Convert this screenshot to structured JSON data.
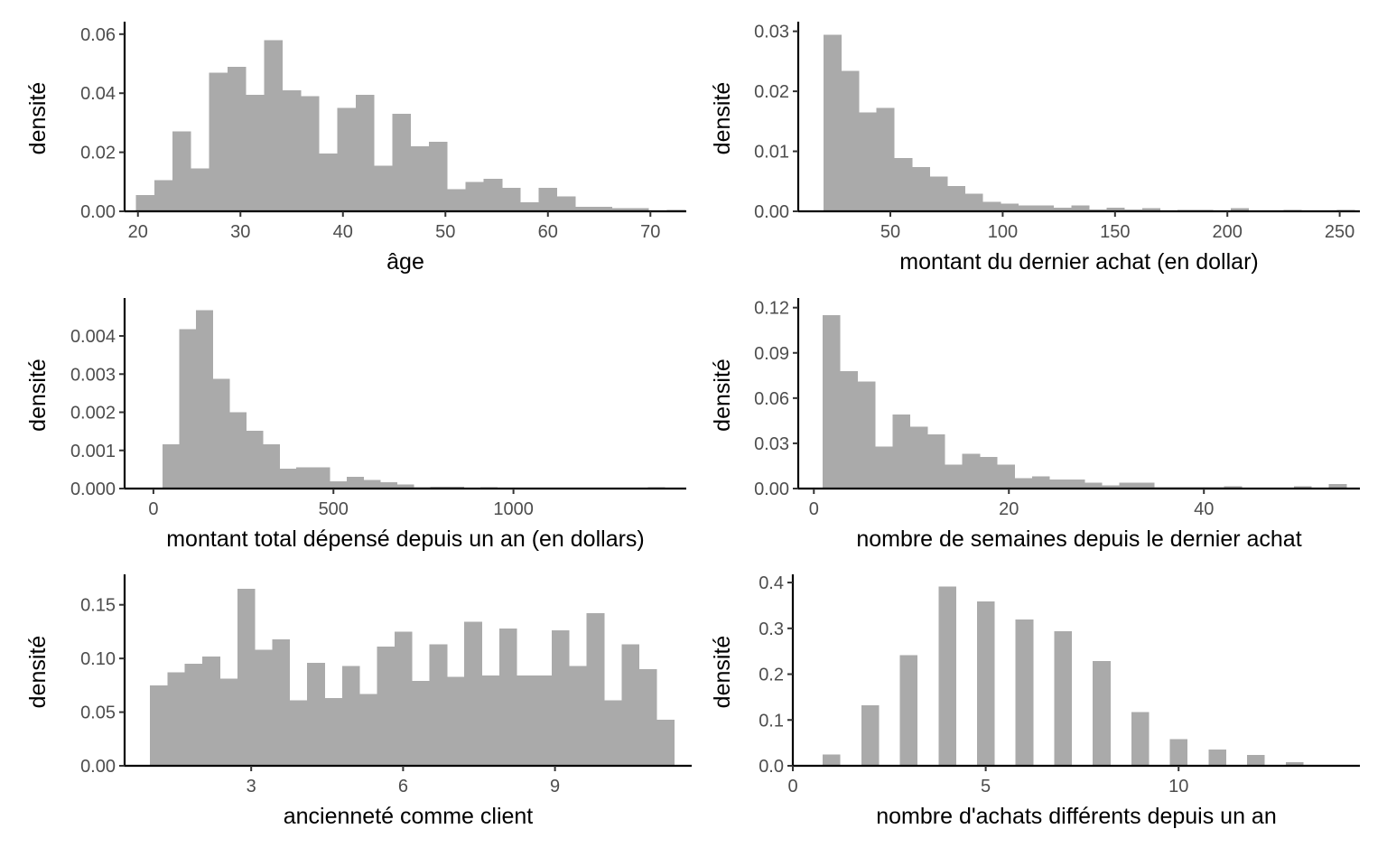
{
  "colors": {
    "bar": "#aaaaaa",
    "axis": "#000000",
    "tick_label": "#4d4d4d"
  },
  "chart_data": [
    {
      "type": "bar",
      "subtype": "histogram",
      "xlabel": "âge",
      "ylabel": "densité",
      "xlim": [
        18.7,
        73.5
      ],
      "ylim": [
        0,
        0.063
      ],
      "xticks": [
        20,
        30,
        40,
        50,
        60,
        70
      ],
      "xtick_labels": [
        "20",
        "30",
        "40",
        "50",
        "60",
        "70"
      ],
      "yticks": [
        0,
        0.02,
        0.04,
        0.06
      ],
      "ytick_labels": [
        "0.00",
        "0.02",
        "0.04",
        "0.06"
      ],
      "bin_start": 19.8,
      "bin_width": 1.786,
      "values": [
        0.0055,
        0.0105,
        0.027,
        0.0145,
        0.047,
        0.049,
        0.0395,
        0.058,
        0.041,
        0.039,
        0.0195,
        0.035,
        0.0395,
        0.0155,
        0.033,
        0.022,
        0.0235,
        0.0075,
        0.01,
        0.011,
        0.008,
        0.003,
        0.008,
        0.005,
        0.0015,
        0.0015,
        0.001,
        0.001,
        0,
        0.0005
      ]
    },
    {
      "type": "bar",
      "subtype": "histogram",
      "xlabel": "montant du dernier achat (en dollar)",
      "ylabel": "densité",
      "xlim": [
        9,
        259
      ],
      "ylim": [
        0,
        0.031
      ],
      "xticks": [
        50,
        100,
        150,
        200,
        250
      ],
      "xtick_labels": [
        "50",
        "100",
        "150",
        "200",
        "250"
      ],
      "yticks": [
        0,
        0.01,
        0.02,
        0.03
      ],
      "ytick_labels": [
        "0.00",
        "0.01",
        "0.02",
        "0.03"
      ],
      "bin_start": 20.2,
      "bin_width": 7.88,
      "values": [
        0.0294,
        0.0234,
        0.0165,
        0.0172,
        0.0089,
        0.0074,
        0.0058,
        0.0042,
        0.0029,
        0.0016,
        0.0013,
        0.001,
        0.001,
        0.0006,
        0.001,
        0.0003,
        0.0006,
        0.0003,
        0.0005,
        0.0001,
        0.0002,
        0.0002,
        0.0001,
        0.0005,
        0.0001,
        0.0001,
        0.0002,
        0.0001,
        0.0001,
        0.0002
      ]
    },
    {
      "type": "bar",
      "subtype": "histogram",
      "xlabel": "montant total dépensé depuis un an (en dollars)",
      "ylabel": "densité",
      "xlim": [
        -80,
        1480
      ],
      "ylim": [
        0,
        0.0049
      ],
      "xticks": [
        0,
        500,
        1000
      ],
      "xtick_labels": [
        "0",
        "500",
        "1000"
      ],
      "yticks": [
        0,
        0.001,
        0.002,
        0.003,
        0.004
      ],
      "ytick_labels": [
        "0.000",
        "0.001",
        "0.002",
        "0.003",
        "0.004"
      ],
      "bin_start": 25,
      "bin_width": 46.5,
      "values": [
        0.00116,
        0.00418,
        0.00467,
        0.00288,
        0.002,
        0.00152,
        0.00116,
        0.00052,
        0.00056,
        0.00056,
        0.00019,
        0.00031,
        0.00022,
        0.00017,
        0.00011,
        3e-05,
        5e-05,
        5e-05,
        2e-05,
        4e-05,
        2e-05,
        1e-05,
        1e-05,
        1e-05,
        1e-05,
        0,
        0,
        0,
        0,
        4e-05
      ]
    },
    {
      "type": "bar",
      "subtype": "histogram",
      "xlabel": "nombre de semaines depuis le dernier achat",
      "ylabel": "densité",
      "xlim": [
        -1.6,
        56
      ],
      "ylim": [
        0,
        0.124
      ],
      "xticks": [
        0,
        20,
        40
      ],
      "xtick_labels": [
        "0",
        "20",
        "40"
      ],
      "yticks": [
        0,
        0.03,
        0.06,
        0.09,
        0.12
      ],
      "ytick_labels": [
        "0.00",
        "0.03",
        "0.06",
        "0.09",
        "0.12"
      ],
      "bin_start": 0.9,
      "bin_width": 1.79,
      "values": [
        0.115,
        0.078,
        0.071,
        0.028,
        0.049,
        0.041,
        0.036,
        0.016,
        0.023,
        0.021,
        0.016,
        0.007,
        0.008,
        0.006,
        0.006,
        0.004,
        0.002,
        0.004,
        0.004,
        0.001,
        0.001,
        0.001,
        0.001,
        0.0015,
        0.0005,
        0.0005,
        0.0005,
        0.0015,
        0,
        0.003
      ]
    },
    {
      "type": "bar",
      "subtype": "histogram",
      "xlabel": "ancienneté comme client",
      "ylabel": "densité",
      "xlim": [
        0.5,
        11.7
      ],
      "ylim": [
        0,
        0.175
      ],
      "xticks": [
        3,
        6,
        9
      ],
      "xtick_labels": [
        "3",
        "6",
        "9"
      ],
      "yticks": [
        0,
        0.05,
        0.1,
        0.15
      ],
      "ytick_labels": [
        "0.00",
        "0.05",
        "0.10",
        "0.15"
      ],
      "bin_start": 1.0,
      "bin_width": 0.345,
      "values": [
        0.075,
        0.087,
        0.095,
        0.102,
        0.081,
        0.165,
        0.108,
        0.118,
        0.061,
        0.096,
        0.063,
        0.093,
        0.067,
        0.111,
        0.125,
        0.079,
        0.113,
        0.083,
        0.134,
        0.084,
        0.128,
        0.084,
        0.084,
        0.126,
        0.093,
        0.142,
        0.061,
        0.113,
        0.09,
        0.043
      ]
    },
    {
      "type": "bar",
      "subtype": "histogram",
      "xlabel": "nombre d'achats différents depuis un an",
      "ylabel": "densité",
      "xlim": [
        0,
        14.7
      ],
      "ylim": [
        0,
        0.41
      ],
      "xticks": [
        0,
        5,
        10
      ],
      "xtick_labels": [
        "0",
        "5",
        "10"
      ],
      "yticks": [
        0,
        0.1,
        0.2,
        0.3,
        0.4
      ],
      "ytick_labels": [
        "0.0",
        "0.1",
        "0.2",
        "0.3",
        "0.4"
      ],
      "bar_width": 0.45,
      "x": [
        1,
        2,
        3,
        4,
        5,
        6,
        7,
        8,
        9,
        10,
        11,
        12,
        13,
        14
      ],
      "values": [
        0.025,
        0.132,
        0.241,
        0.391,
        0.359,
        0.319,
        0.294,
        0.229,
        0.117,
        0.058,
        0.035,
        0.024,
        0.008,
        0.002
      ]
    }
  ]
}
